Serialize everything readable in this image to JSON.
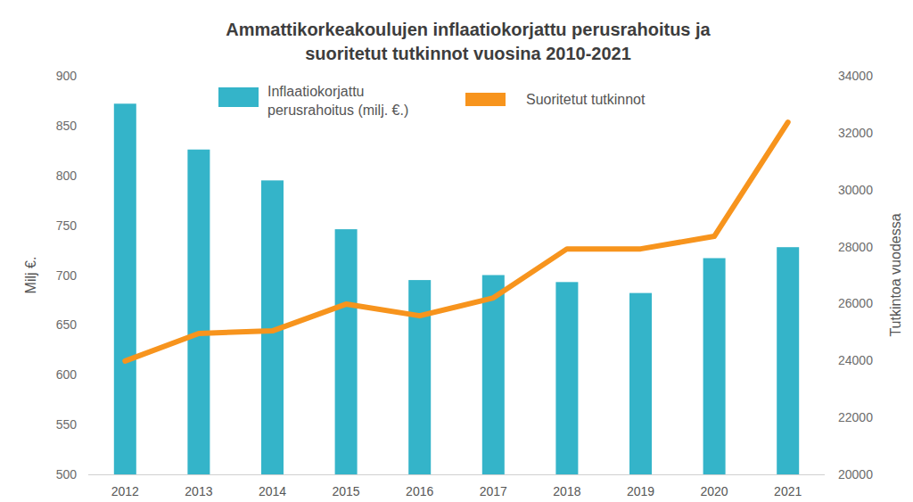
{
  "chart_data": {
    "type": "bar",
    "title": "Ammattikorkeakoulujen inflaatiokorjattu perusrahoitus ja suoritetut tutkinnot vuosina 2010-2021",
    "categories": [
      "2012",
      "2013",
      "2014",
      "2015",
      "2016",
      "2017",
      "2018",
      "2019",
      "2020",
      "2021"
    ],
    "series": [
      {
        "name": "Inflaatiokorjattu perusrahoitus (milj. €.)",
        "type": "bar",
        "color": "#34b4c9",
        "values": [
          872,
          826,
          795,
          746,
          695,
          700,
          693,
          682,
          717,
          728
        ]
      },
      {
        "name": "Suoritetut tutkinnot",
        "type": "line",
        "color": "#f7941d",
        "axis": "y2",
        "values": [
          23980,
          24950,
          25040,
          25980,
          25570,
          26200,
          27920,
          27920,
          28360,
          32370
        ]
      }
    ],
    "ylabel": "Milj €.",
    "y2label": "Tutkintoa vuodessa",
    "ylim": [
      500,
      900
    ],
    "yticks": [
      500,
      550,
      600,
      650,
      700,
      750,
      800,
      850,
      900
    ],
    "y2lim": [
      20000,
      34000
    ],
    "y2ticks": [
      20000,
      22000,
      24000,
      26000,
      28000,
      30000,
      32000,
      34000
    ],
    "grid": false,
    "legend": "top"
  }
}
